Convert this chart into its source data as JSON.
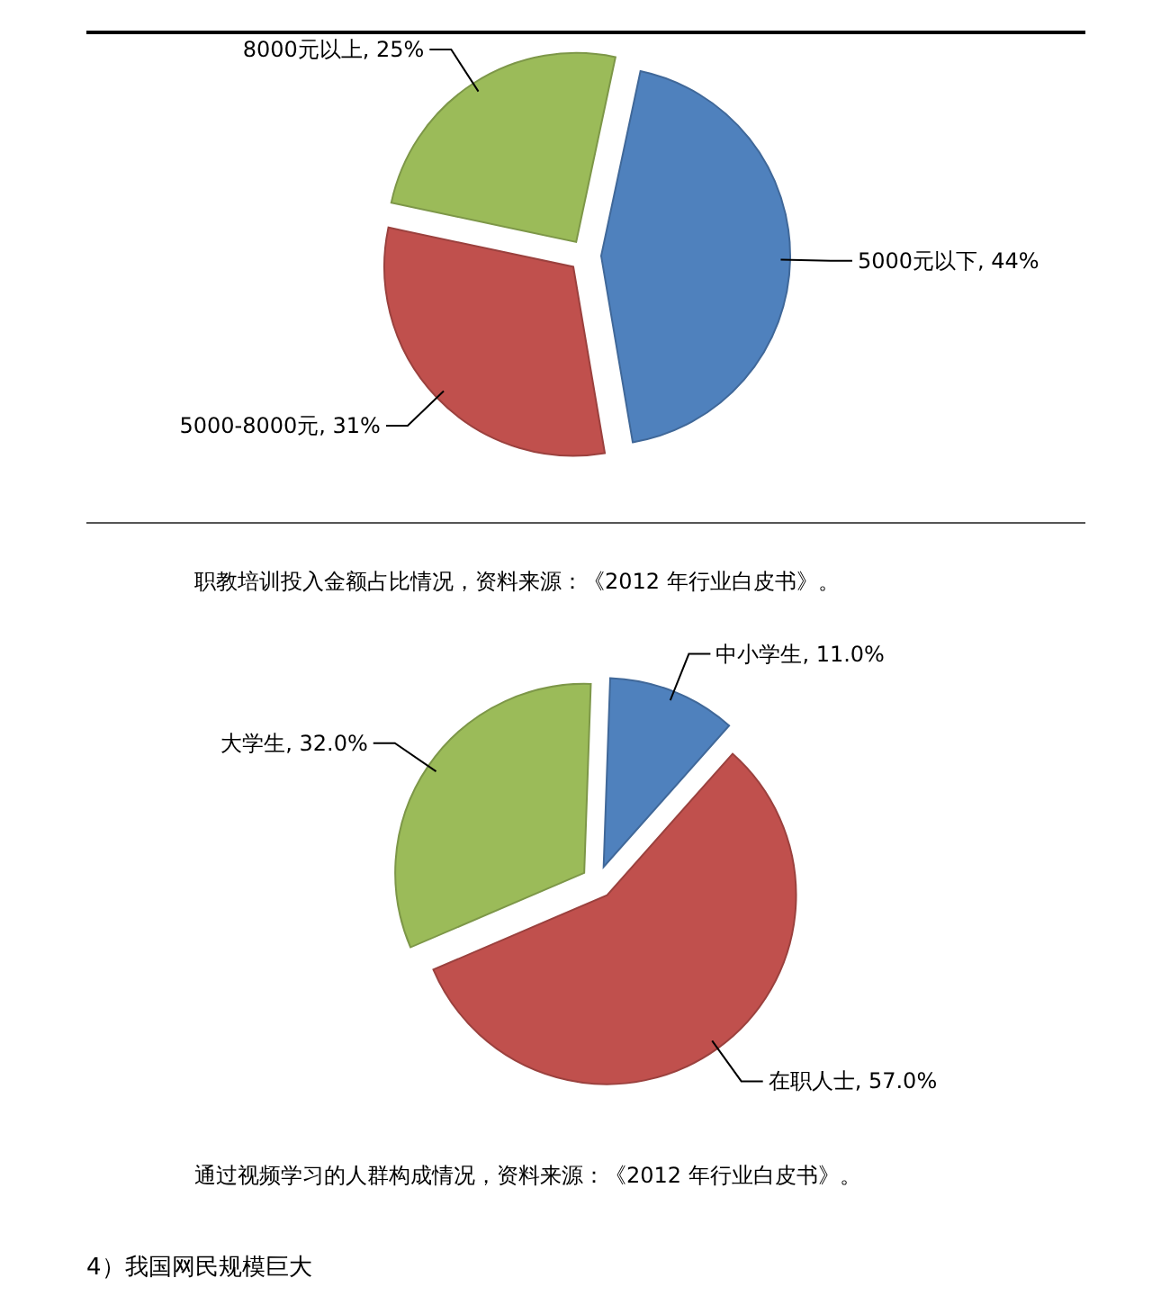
{
  "chart_data": [
    {
      "type": "pie",
      "title": "职教培训投入金额占比情况，资料来源：《2012 年行业白皮书》。",
      "categories": [
        "5000元以下",
        "5000-8000元",
        "8000元以上"
      ],
      "values": [
        44,
        31,
        25
      ],
      "value_labels": [
        "44%",
        "31%",
        "25%"
      ],
      "colors": [
        "#4f81bd",
        "#c0504d",
        "#9bbb59"
      ]
    },
    {
      "type": "pie",
      "title": "通过视频学习的人群构成情况，资料来源：《2012 年行业白皮书》。",
      "categories": [
        "中小学生",
        "在职人士",
        "大学生"
      ],
      "values": [
        11.0,
        57.0,
        32.0
      ],
      "value_labels": [
        "11.0%",
        "57.0%",
        "32.0%"
      ],
      "colors": [
        "#4f81bd",
        "#c0504d",
        "#9bbb59"
      ],
      "annotations": [
        "4）我国网民规模巨大"
      ]
    }
  ]
}
